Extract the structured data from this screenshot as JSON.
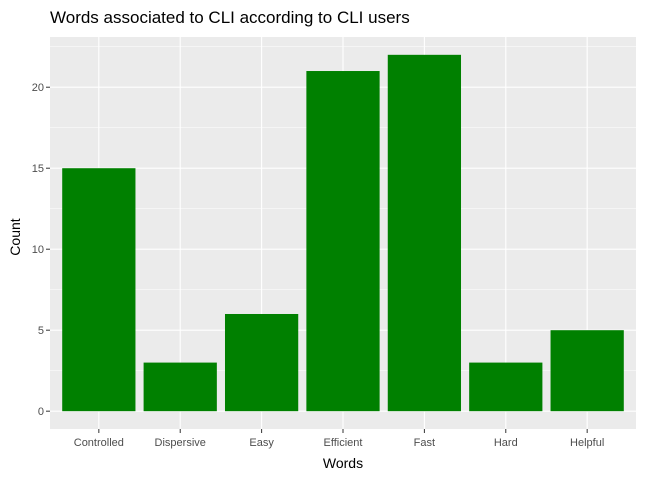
{
  "chart_data": {
    "type": "bar",
    "title": "Words associated to CLI according to CLI users",
    "xlabel": "Words",
    "ylabel": "Count",
    "categories": [
      "Controlled",
      "Dispersive",
      "Easy",
      "Efficient",
      "Fast",
      "Hard",
      "Helpful"
    ],
    "values": [
      15,
      3,
      6,
      21,
      22,
      3,
      5
    ],
    "ylim": [
      -1.1,
      23.1
    ],
    "yticks": [
      0,
      5,
      10,
      15,
      20
    ],
    "bar_color": "#008000",
    "panel_background": "#ebebeb",
    "grid": true,
    "legend": "none"
  }
}
